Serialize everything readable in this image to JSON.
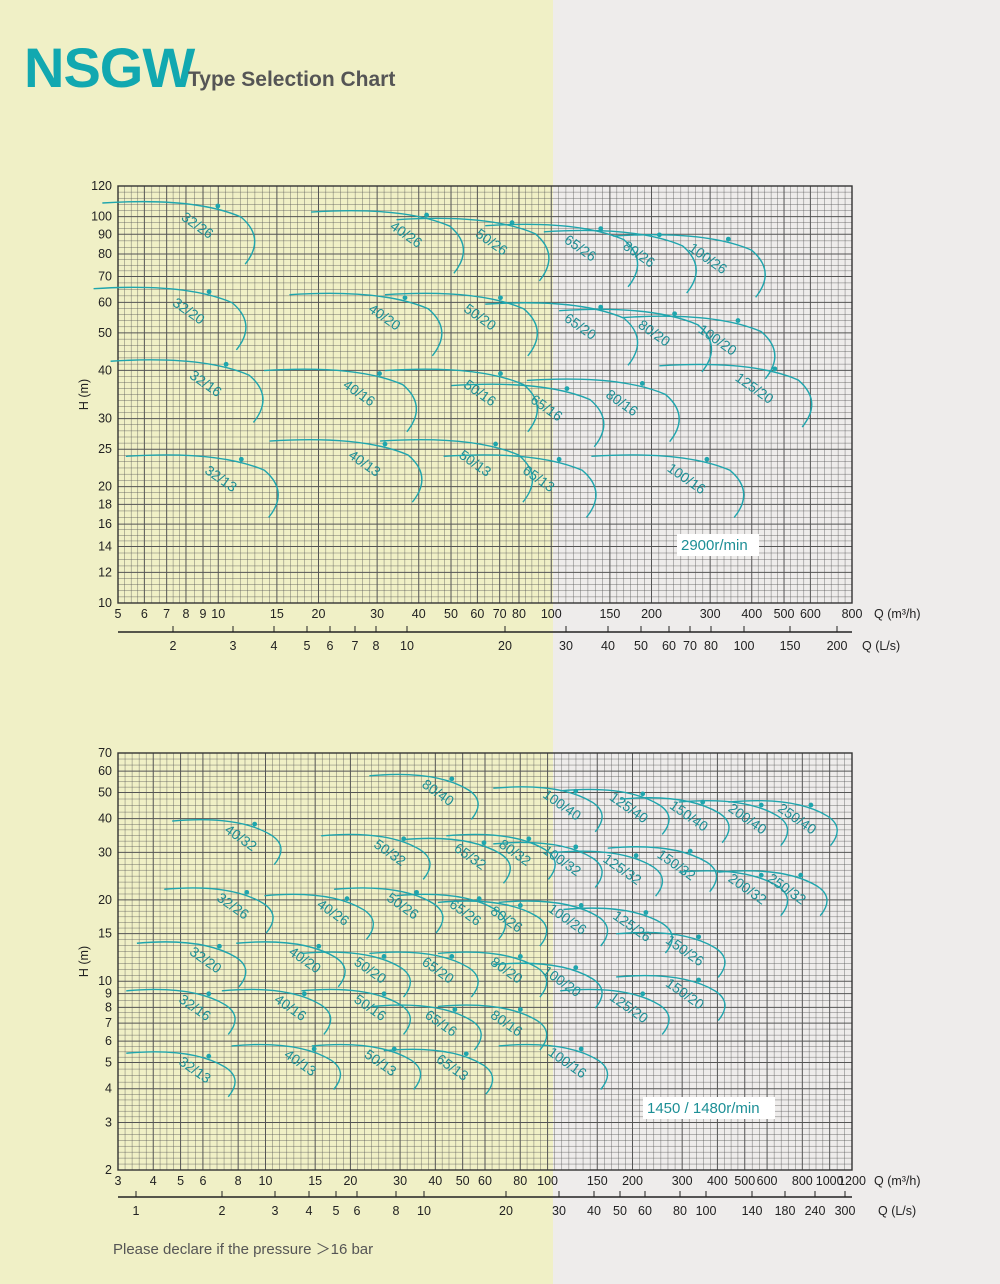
{
  "header": {
    "brand": "NSGW",
    "subtitle": "Type Selection Chart"
  },
  "footnote": "Please declare if the pressure ＞16 bar",
  "chart_data": [
    {
      "type": "line",
      "speed_label": "2900r/min",
      "ylabel": "H (m)",
      "xlabel": "Q (m³/h)",
      "x2label": "Q (L/s)",
      "x_scale": "log",
      "y_scale": "log",
      "xlim": [
        5,
        800
      ],
      "ylim": [
        10,
        120
      ],
      "x_ticks": [
        5,
        6,
        7,
        8,
        9,
        10,
        15,
        20,
        30,
        40,
        50,
        60,
        70,
        80,
        100,
        150,
        200,
        300,
        400,
        500,
        600,
        800
      ],
      "x_ticks_display": [
        "5",
        "6",
        "7",
        "8",
        "9",
        "10",
        "15",
        "20",
        "30",
        "40",
        "50",
        "60",
        "70",
        "80",
        "100",
        "150",
        "200",
        "300",
        "400",
        "500",
        "600",
        "800"
      ],
      "y_ticks": [
        10,
        12,
        14,
        16,
        18,
        20,
        25,
        30,
        40,
        50,
        60,
        70,
        80,
        90,
        100,
        120
      ],
      "x2_ticks": [
        2,
        3,
        4,
        5,
        6,
        7,
        8,
        10,
        20,
        30,
        40,
        50,
        60,
        70,
        80,
        100,
        150,
        200
      ],
      "models": [
        {
          "name": "32/26",
          "q": 8.5,
          "h": 95
        },
        {
          "name": "40/26",
          "q": 36,
          "h": 90
        },
        {
          "name": "50/26",
          "q": 65,
          "h": 86
        },
        {
          "name": "65/26",
          "q": 120,
          "h": 83
        },
        {
          "name": "80/26",
          "q": 180,
          "h": 80
        },
        {
          "name": "100/26",
          "q": 290,
          "h": 78
        },
        {
          "name": "32/20",
          "q": 8,
          "h": 57
        },
        {
          "name": "40/20",
          "q": 31,
          "h": 55
        },
        {
          "name": "50/20",
          "q": 60,
          "h": 55
        },
        {
          "name": "65/20",
          "q": 120,
          "h": 52
        },
        {
          "name": "80/20",
          "q": 200,
          "h": 50
        },
        {
          "name": "100/20",
          "q": 310,
          "h": 48
        },
        {
          "name": "125/20",
          "q": 400,
          "h": 36
        },
        {
          "name": "32/16",
          "q": 9,
          "h": 37
        },
        {
          "name": "40/16",
          "q": 26,
          "h": 35
        },
        {
          "name": "50/16",
          "q": 60,
          "h": 35
        },
        {
          "name": "65/16",
          "q": 95,
          "h": 32
        },
        {
          "name": "80/16",
          "q": 160,
          "h": 33
        },
        {
          "name": "100/16",
          "q": 250,
          "h": 21
        },
        {
          "name": "32/13",
          "q": 10,
          "h": 21
        },
        {
          "name": "40/13",
          "q": 27,
          "h": 23
        },
        {
          "name": "50/13",
          "q": 58,
          "h": 23
        },
        {
          "name": "65/13",
          "q": 90,
          "h": 21
        }
      ]
    },
    {
      "type": "line",
      "speed_label": "1450 / 1480r/min",
      "ylabel": "H (m)",
      "xlabel": "Q (m³/h)",
      "x2label": "Q (L/s)",
      "x_scale": "log",
      "y_scale": "log",
      "xlim": [
        3,
        1200
      ],
      "ylim": [
        2,
        70
      ],
      "x_ticks": [
        3,
        4,
        5,
        6,
        8,
        10,
        15,
        20,
        30,
        40,
        50,
        60,
        80,
        100,
        150,
        200,
        300,
        400,
        500,
        600,
        800,
        1000,
        1200
      ],
      "x_ticks_display": [
        "3",
        "4",
        "5",
        "6",
        "8",
        "10",
        "15",
        "20",
        "30",
        "40",
        "50",
        "60",
        "80",
        "100",
        "150",
        "200",
        "300",
        "400",
        "500",
        "600",
        "800",
        "1000",
        "1200"
      ],
      "y_ticks": [
        2,
        3,
        4,
        5,
        6,
        7,
        8,
        9,
        10,
        15,
        20,
        30,
        40,
        50,
        60,
        70
      ],
      "x2_ticks": [
        1,
        2,
        3,
        4,
        5,
        6,
        8,
        10,
        20,
        30,
        40,
        50,
        60,
        80,
        100,
        140,
        180,
        240,
        300
      ],
      "models": [
        {
          "name": "80/40",
          "q": 40,
          "h": 50
        },
        {
          "name": "100/40",
          "q": 110,
          "h": 45
        },
        {
          "name": "125/40",
          "q": 190,
          "h": 44
        },
        {
          "name": "150/40",
          "q": 310,
          "h": 41
        },
        {
          "name": "200/40",
          "q": 500,
          "h": 40
        },
        {
          "name": "250/40",
          "q": 750,
          "h": 40
        },
        {
          "name": "40/32",
          "q": 8,
          "h": 34
        },
        {
          "name": "50/32",
          "q": 27,
          "h": 30
        },
        {
          "name": "65/32",
          "q": 52,
          "h": 29
        },
        {
          "name": "80/32",
          "q": 75,
          "h": 30
        },
        {
          "name": "100/32",
          "q": 110,
          "h": 28
        },
        {
          "name": "125/32",
          "q": 180,
          "h": 26
        },
        {
          "name": "150/32",
          "q": 280,
          "h": 27
        },
        {
          "name": "200/32",
          "q": 500,
          "h": 22
        },
        {
          "name": "250/32",
          "q": 690,
          "h": 22
        },
        {
          "name": "32/26",
          "q": 7.5,
          "h": 19
        },
        {
          "name": "40/26",
          "q": 17,
          "h": 18
        },
        {
          "name": "50/26",
          "q": 30,
          "h": 19
        },
        {
          "name": "65/26",
          "q": 50,
          "h": 18
        },
        {
          "name": "80/26",
          "q": 70,
          "h": 17
        },
        {
          "name": "100/26",
          "q": 115,
          "h": 17
        },
        {
          "name": "125/26",
          "q": 195,
          "h": 16
        },
        {
          "name": "150/26",
          "q": 300,
          "h": 13
        },
        {
          "name": "32/20",
          "q": 6,
          "h": 12
        },
        {
          "name": "40/20",
          "q": 13.5,
          "h": 12
        },
        {
          "name": "50/20",
          "q": 23,
          "h": 11
        },
        {
          "name": "65/20",
          "q": 40,
          "h": 11
        },
        {
          "name": "80/20",
          "q": 70,
          "h": 11
        },
        {
          "name": "100/20",
          "q": 110,
          "h": 10
        },
        {
          "name": "125/20",
          "q": 190,
          "h": 8
        },
        {
          "name": "150/20",
          "q": 300,
          "h": 9
        },
        {
          "name": "32/16",
          "q": 5.5,
          "h": 8
        },
        {
          "name": "40/16",
          "q": 12,
          "h": 8
        },
        {
          "name": "50/16",
          "q": 23,
          "h": 8
        },
        {
          "name": "65/16",
          "q": 41,
          "h": 7
        },
        {
          "name": "80/16",
          "q": 70,
          "h": 7
        },
        {
          "name": "100/16",
          "q": 115,
          "h": 5
        },
        {
          "name": "32/13",
          "q": 5.5,
          "h": 4.7
        },
        {
          "name": "40/13",
          "q": 13,
          "h": 5
        },
        {
          "name": "50/13",
          "q": 25,
          "h": 5
        },
        {
          "name": "65/13",
          "q": 45,
          "h": 4.8
        }
      ]
    }
  ]
}
